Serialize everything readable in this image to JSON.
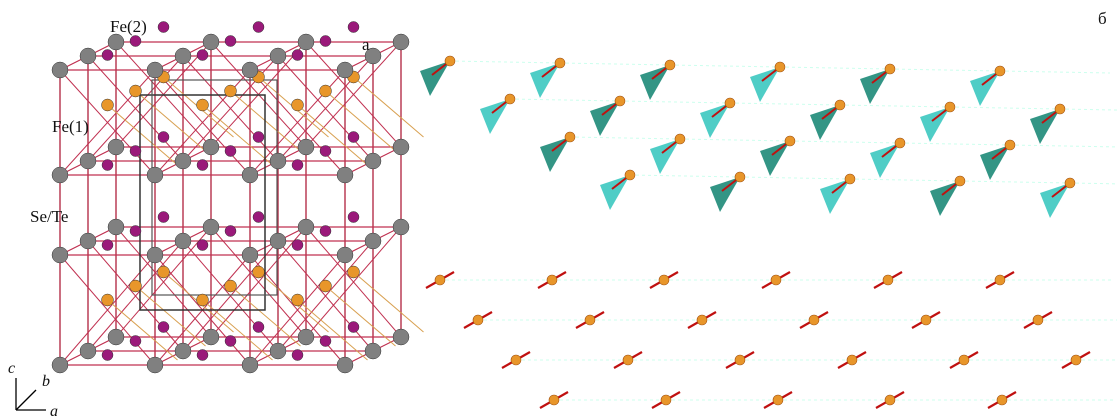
{
  "panel_a": {
    "label": "а",
    "atom_labels": [
      "Fe(2)",
      "Fe(1)",
      "Se/Te"
    ],
    "axes": [
      "c",
      "b",
      "a"
    ]
  },
  "panel_b": {
    "label": "б"
  }
}
